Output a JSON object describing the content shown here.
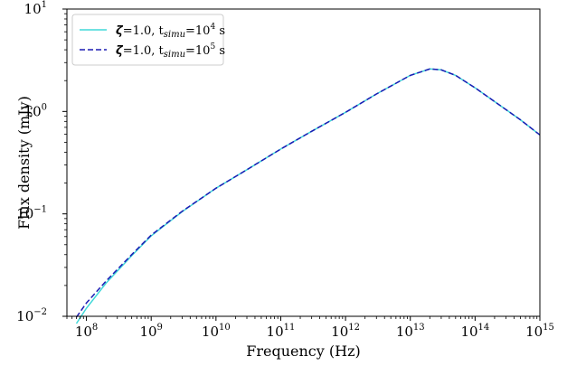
{
  "chart_data": {
    "type": "line",
    "xlabel": "Frequency (Hz)",
    "ylabel": "Flux density (mJy)",
    "xscale": "log",
    "yscale": "log",
    "xlim": [
      50000000.0,
      1000000000000000.0
    ],
    "ylim": [
      0.01,
      10
    ],
    "grid": false,
    "legend_position": "top-left",
    "x_ticks": [
      {
        "value": 100000000.0,
        "base": "10",
        "exp": "8"
      },
      {
        "value": 1000000000.0,
        "base": "10",
        "exp": "9"
      },
      {
        "value": 10000000000.0,
        "base": "10",
        "exp": "10"
      },
      {
        "value": 100000000000.0,
        "base": "10",
        "exp": "11"
      },
      {
        "value": 1000000000000.0,
        "base": "10",
        "exp": "12"
      },
      {
        "value": 10000000000000.0,
        "base": "10",
        "exp": "13"
      },
      {
        "value": 100000000000000.0,
        "base": "10",
        "exp": "14"
      },
      {
        "value": 1000000000000000.0,
        "base": "10",
        "exp": "15"
      }
    ],
    "y_ticks": [
      {
        "value": 0.01,
        "base": "10",
        "exp": "−2"
      },
      {
        "value": 0.1,
        "base": "10",
        "exp": "−1"
      },
      {
        "value": 1,
        "base": "10",
        "exp": "0"
      },
      {
        "value": 10,
        "base": "10",
        "exp": "1"
      }
    ],
    "series": [
      {
        "legend": {
          "symbol": "ζ",
          "eq": "=1.0, t",
          "sub": "simu",
          "eq2": "=10",
          "sup": "4",
          "unit": " s"
        },
        "color": "#40d8d8",
        "dash": "solid",
        "x": [
          70000000.0,
          100000000.0,
          200000000.0,
          500000000.0,
          1000000000.0,
          3000000000.0,
          10000000000.0,
          30000000000.0,
          100000000000.0,
          300000000000.0,
          1000000000000.0,
          3000000000000.0,
          10000000000000.0,
          20000000000000.0,
          30000000000000.0,
          50000000000000.0,
          100000000000000.0,
          200000000000000.0,
          500000000000000.0,
          1000000000000000.0
        ],
        "y": [
          0.0085,
          0.012,
          0.021,
          0.039,
          0.061,
          0.105,
          0.178,
          0.27,
          0.43,
          0.64,
          0.98,
          1.48,
          2.25,
          2.6,
          2.55,
          2.25,
          1.7,
          1.25,
          0.83,
          0.59
        ]
      },
      {
        "legend": {
          "symbol": "ζ",
          "eq": "=1.0, t",
          "sub": "simu",
          "eq2": "=10",
          "sup": "5",
          "unit": " s"
        },
        "color": "#1c1cb4",
        "dash": "dashed",
        "x": [
          70000000.0,
          100000000.0,
          200000000.0,
          500000000.0,
          1000000000.0,
          3000000000.0,
          10000000000.0,
          30000000000.0,
          100000000000.0,
          300000000000.0,
          1000000000000.0,
          3000000000000.0,
          10000000000000.0,
          20000000000000.0,
          30000000000000.0,
          50000000000000.0,
          100000000000000.0,
          200000000000000.0,
          500000000000000.0,
          1000000000000000.0
        ],
        "y": [
          0.0098,
          0.0135,
          0.022,
          0.04,
          0.062,
          0.106,
          0.178,
          0.27,
          0.43,
          0.64,
          0.98,
          1.48,
          2.25,
          2.6,
          2.55,
          2.25,
          1.7,
          1.25,
          0.83,
          0.59
        ]
      }
    ]
  }
}
